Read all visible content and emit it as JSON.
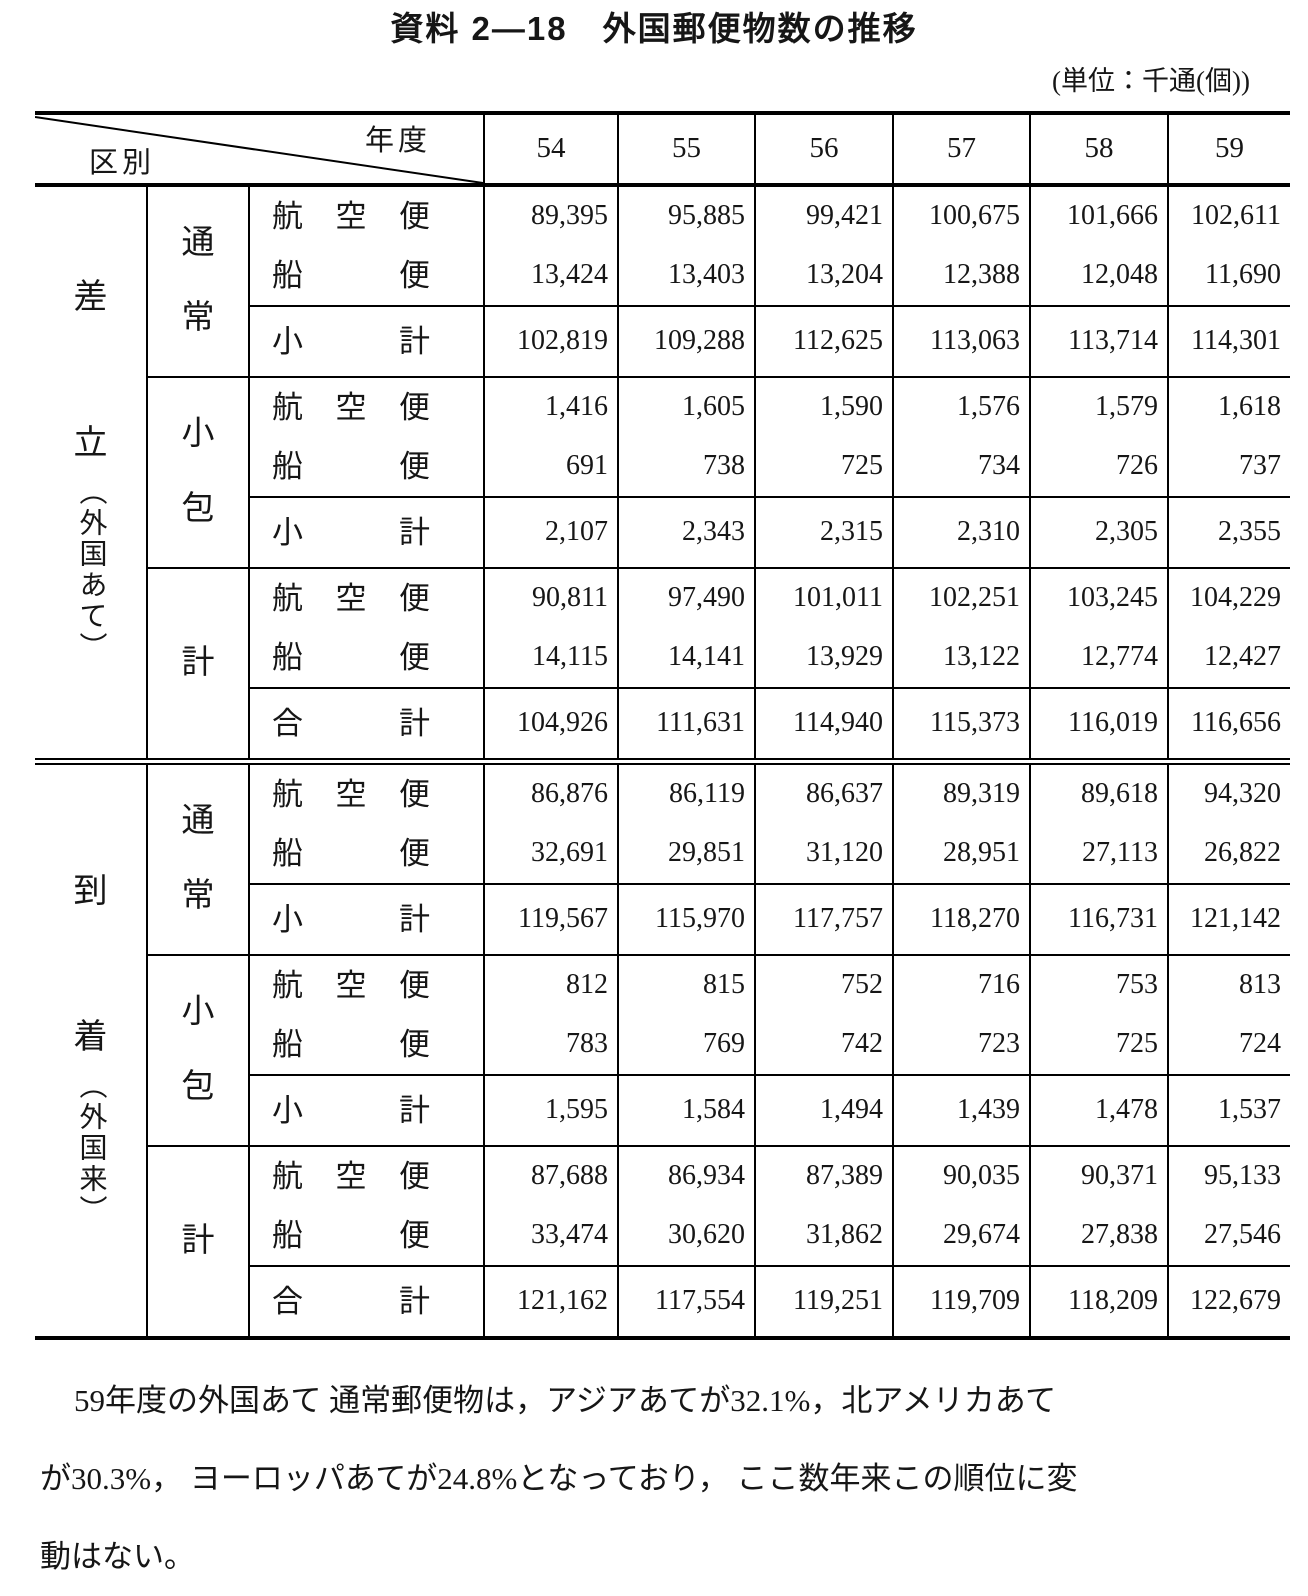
{
  "title": "資料 2—18　外国郵便物数の推移",
  "unit": "(単位：千通(個))",
  "table": {
    "header": {
      "axis_col": "年度",
      "axis_row": "区別",
      "years": [
        "54",
        "55",
        "56",
        "57",
        "58",
        "59"
      ]
    },
    "sections": [
      {
        "group": {
          "chars": [
            "差",
            "立"
          ],
          "paren": "（外国あて）"
        },
        "blocks": [
          {
            "subgroup": "通常",
            "rows": [
              {
                "label": "航空便",
                "kind": "air",
                "values": [
                  "89,395",
                  "95,885",
                  "99,421",
                  "100,675",
                  "101,666",
                  "102,611"
                ]
              },
              {
                "label": "船便",
                "kind": "sea",
                "values": [
                  "13,424",
                  "13,403",
                  "13,204",
                  "12,388",
                  "12,048",
                  "11,690"
                ]
              },
              {
                "label": "小計",
                "kind": "sub",
                "values": [
                  "102,819",
                  "109,288",
                  "112,625",
                  "113,063",
                  "113,714",
                  "114,301"
                ]
              }
            ]
          },
          {
            "subgroup": "小包",
            "rows": [
              {
                "label": "航空便",
                "kind": "air",
                "values": [
                  "1,416",
                  "1,605",
                  "1,590",
                  "1,576",
                  "1,579",
                  "1,618"
                ]
              },
              {
                "label": "船便",
                "kind": "sea",
                "values": [
                  "691",
                  "738",
                  "725",
                  "734",
                  "726",
                  "737"
                ]
              },
              {
                "label": "小計",
                "kind": "sub",
                "values": [
                  "2,107",
                  "2,343",
                  "2,315",
                  "2,310",
                  "2,305",
                  "2,355"
                ]
              }
            ]
          },
          {
            "subgroup": "計",
            "rows": [
              {
                "label": "航空便",
                "kind": "air",
                "values": [
                  "90,811",
                  "97,490",
                  "101,011",
                  "102,251",
                  "103,245",
                  "104,229"
                ]
              },
              {
                "label": "船便",
                "kind": "sea",
                "values": [
                  "14,115",
                  "14,141",
                  "13,929",
                  "13,122",
                  "12,774",
                  "12,427"
                ]
              },
              {
                "label": "合計",
                "kind": "sub",
                "values": [
                  "104,926",
                  "111,631",
                  "114,940",
                  "115,373",
                  "116,019",
                  "116,656"
                ]
              }
            ]
          }
        ]
      },
      {
        "group": {
          "chars": [
            "到",
            "着"
          ],
          "paren": "（外国来）"
        },
        "blocks": [
          {
            "subgroup": "通常",
            "rows": [
              {
                "label": "航空便",
                "kind": "air",
                "values": [
                  "86,876",
                  "86,119",
                  "86,637",
                  "89,319",
                  "89,618",
                  "94,320"
                ]
              },
              {
                "label": "船便",
                "kind": "sea",
                "values": [
                  "32,691",
                  "29,851",
                  "31,120",
                  "28,951",
                  "27,113",
                  "26,822"
                ]
              },
              {
                "label": "小計",
                "kind": "sub",
                "values": [
                  "119,567",
                  "115,970",
                  "117,757",
                  "118,270",
                  "116,731",
                  "121,142"
                ]
              }
            ]
          },
          {
            "subgroup": "小包",
            "rows": [
              {
                "label": "航空便",
                "kind": "air",
                "values": [
                  "812",
                  "815",
                  "752",
                  "716",
                  "753",
                  "813"
                ]
              },
              {
                "label": "船便",
                "kind": "sea",
                "values": [
                  "783",
                  "769",
                  "742",
                  "723",
                  "725",
                  "724"
                ]
              },
              {
                "label": "小計",
                "kind": "sub",
                "values": [
                  "1,595",
                  "1,584",
                  "1,494",
                  "1,439",
                  "1,478",
                  "1,537"
                ]
              }
            ]
          },
          {
            "subgroup": "計",
            "rows": [
              {
                "label": "航空便",
                "kind": "air",
                "values": [
                  "87,688",
                  "86,934",
                  "87,389",
                  "90,035",
                  "90,371",
                  "95,133"
                ]
              },
              {
                "label": "船便",
                "kind": "sea",
                "values": [
                  "33,474",
                  "30,620",
                  "31,862",
                  "29,674",
                  "27,838",
                  "27,546"
                ]
              },
              {
                "label": "合計",
                "kind": "sub",
                "values": [
                  "121,162",
                  "117,554",
                  "119,251",
                  "119,709",
                  "118,209",
                  "122,679"
                ]
              }
            ]
          }
        ]
      }
    ]
  },
  "note": {
    "lines": [
      "59年度の外国あて 通常郵便物は，アジアあてが32.1%，北アメリカあて",
      "が30.3%， ヨーロッパあてが24.8%となっており， ここ数年来この順位に変",
      "動はない。"
    ]
  }
}
